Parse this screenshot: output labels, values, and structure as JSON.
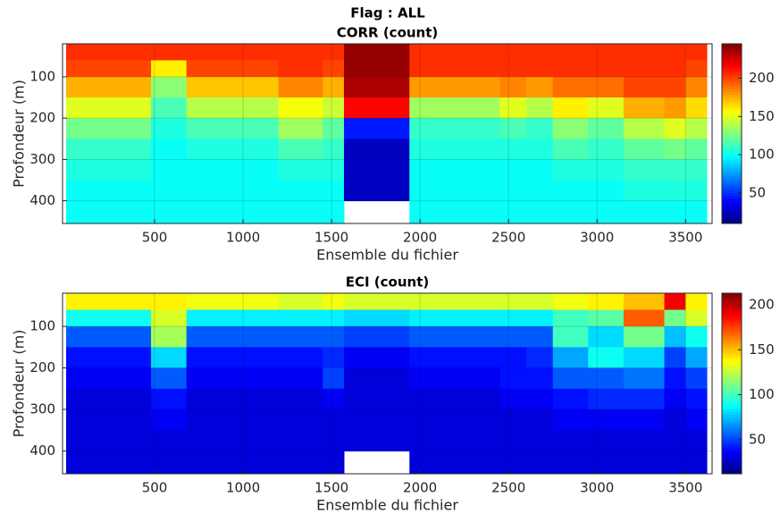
{
  "title": "Flag : ALL",
  "chart_data": [
    {
      "type": "heatmap",
      "title": "CORR (count)",
      "x_label": "Ensemble du fichier",
      "y_label": "Profondeur (m)",
      "x_edges": [
        0,
        480,
        680,
        1200,
        1450,
        1570,
        1940,
        2450,
        2600,
        2750,
        2950,
        3150,
        3380,
        3500,
        3620
      ],
      "y_edges": [
        20,
        60,
        100,
        150,
        200,
        250,
        300,
        350,
        400,
        455
      ],
      "z": [
        [
          205,
          205,
          205,
          205,
          205,
          240,
          205,
          205,
          205,
          205,
          205,
          205,
          205,
          205
        ],
        [
          200,
          160,
          200,
          205,
          200,
          240,
          205,
          205,
          205,
          205,
          205,
          205,
          205,
          200
        ],
        [
          175,
          130,
          170,
          185,
          175,
          235,
          180,
          185,
          180,
          190,
          190,
          200,
          200,
          185
        ],
        [
          150,
          115,
          140,
          155,
          145,
          215,
          135,
          150,
          140,
          160,
          150,
          175,
          180,
          165
        ],
        [
          125,
          105,
          115,
          135,
          120,
          45,
          110,
          115,
          110,
          130,
          120,
          140,
          150,
          140
        ],
        [
          110,
          100,
          105,
          115,
          110,
          25,
          105,
          105,
          105,
          115,
          110,
          120,
          125,
          120
        ],
        [
          105,
          100,
          100,
          105,
          105,
          25,
          100,
          100,
          100,
          105,
          105,
          110,
          110,
          110
        ],
        [
          100,
          100,
          100,
          100,
          100,
          25,
          100,
          100,
          100,
          100,
          100,
          105,
          105,
          105
        ],
        [
          100,
          100,
          100,
          100,
          100,
          null,
          100,
          100,
          100,
          100,
          100,
          100,
          100,
          100
        ]
      ],
      "xlim": [
        -20,
        3650
      ],
      "ylim": [
        20,
        455
      ],
      "y_reversed": true,
      "xticks": [
        500,
        1000,
        1500,
        2000,
        2500,
        3000,
        3500
      ],
      "yticks": [
        100,
        200,
        300,
        400
      ],
      "clim": [
        10,
        245
      ],
      "cticks": [
        50,
        100,
        150,
        200
      ],
      "colormap": "jet",
      "grid": true
    },
    {
      "type": "heatmap",
      "title": "ECI (count)",
      "x_label": "Ensemble du fichier",
      "y_label": "Profondeur (m)",
      "x_edges": [
        0,
        480,
        680,
        1200,
        1450,
        1570,
        1940,
        2450,
        2600,
        2750,
        2950,
        3150,
        3380,
        3500,
        3620
      ],
      "y_edges": [
        20,
        60,
        100,
        150,
        200,
        250,
        300,
        350,
        400,
        455
      ],
      "z": [
        [
          140,
          140,
          135,
          130,
          135,
          130,
          130,
          130,
          130,
          135,
          140,
          150,
          190,
          140
        ],
        [
          90,
          130,
          85,
          85,
          85,
          80,
          85,
          85,
          85,
          100,
          105,
          170,
          110,
          130
        ],
        [
          55,
          120,
          55,
          55,
          55,
          50,
          55,
          55,
          55,
          100,
          80,
          110,
          75,
          90
        ],
        [
          40,
          80,
          40,
          40,
          45,
          35,
          40,
          40,
          45,
          70,
          90,
          80,
          50,
          70
        ],
        [
          35,
          55,
          35,
          35,
          50,
          30,
          35,
          40,
          40,
          55,
          55,
          60,
          40,
          50
        ],
        [
          30,
          40,
          30,
          30,
          35,
          30,
          30,
          35,
          35,
          40,
          45,
          45,
          35,
          40
        ],
        [
          30,
          35,
          30,
          30,
          30,
          30,
          30,
          30,
          30,
          35,
          35,
          35,
          30,
          35
        ],
        [
          30,
          30,
          30,
          30,
          30,
          30,
          30,
          30,
          30,
          30,
          30,
          30,
          30,
          30
        ],
        [
          30,
          30,
          30,
          30,
          30,
          null,
          30,
          30,
          30,
          30,
          30,
          30,
          30,
          30
        ]
      ],
      "xlim": [
        -20,
        3650
      ],
      "ylim": [
        20,
        455
      ],
      "y_reversed": true,
      "xticks": [
        500,
        1000,
        1500,
        2000,
        2500,
        3000,
        3500
      ],
      "yticks": [
        100,
        200,
        300,
        400
      ],
      "clim": [
        12,
        213
      ],
      "cticks": [
        50,
        100,
        150,
        200
      ],
      "colormap": "jet",
      "grid": true
    }
  ]
}
